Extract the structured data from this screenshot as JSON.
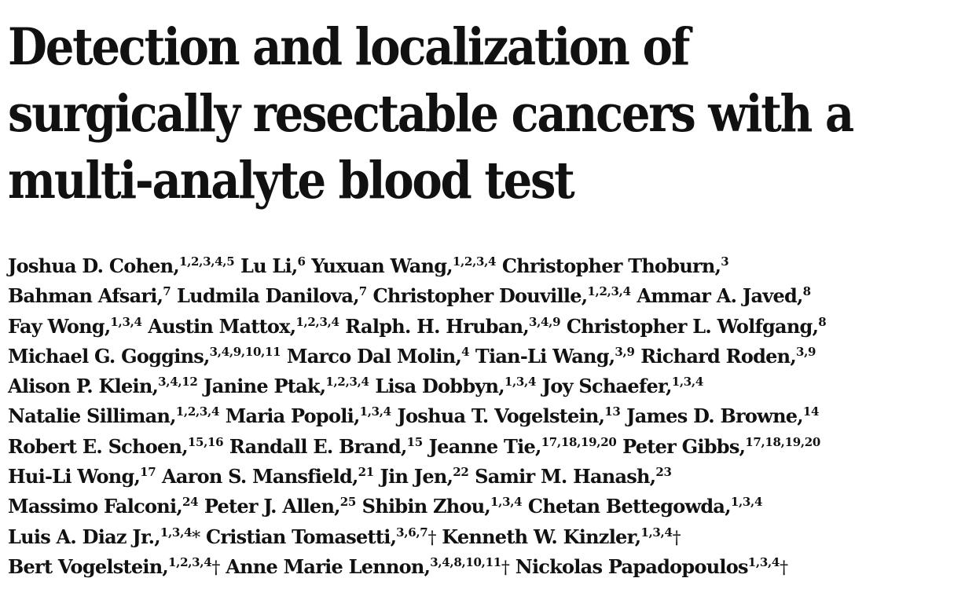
{
  "paper": {
    "title_lines": [
      "Detection and localization of",
      "surgically resectable cancers with a",
      "multi-analyte blood test"
    ],
    "author_lines": [
      [
        {
          "name": "Joshua D. Cohen,",
          "aff": "1,2,3,4,5",
          "mark": ""
        },
        {
          "name": "Lu Li,",
          "aff": "6",
          "mark": ""
        },
        {
          "name": "Yuxuan Wang,",
          "aff": "1,2,3,4",
          "mark": ""
        },
        {
          "name": "Christopher Thoburn,",
          "aff": "3",
          "mark": ""
        }
      ],
      [
        {
          "name": "Bahman Afsari,",
          "aff": "7",
          "mark": ""
        },
        {
          "name": "Ludmila Danilova,",
          "aff": "7",
          "mark": ""
        },
        {
          "name": "Christopher Douville,",
          "aff": "1,2,3,4",
          "mark": ""
        },
        {
          "name": "Ammar A. Javed,",
          "aff": "8",
          "mark": ""
        }
      ],
      [
        {
          "name": "Fay Wong,",
          "aff": "1,3,4",
          "mark": ""
        },
        {
          "name": "Austin Mattox,",
          "aff": "1,2,3,4",
          "mark": ""
        },
        {
          "name": "Ralph. H. Hruban,",
          "aff": "3,4,9",
          "mark": ""
        },
        {
          "name": "Christopher L. Wolfgang,",
          "aff": "8",
          "mark": ""
        }
      ],
      [
        {
          "name": "Michael G. Goggins,",
          "aff": "3,4,9,10,11",
          "mark": ""
        },
        {
          "name": "Marco Dal Molin,",
          "aff": "4",
          "mark": ""
        },
        {
          "name": "Tian-Li Wang,",
          "aff": "3,9",
          "mark": ""
        },
        {
          "name": "Richard Roden,",
          "aff": "3,9",
          "mark": ""
        }
      ],
      [
        {
          "name": "Alison P. Klein,",
          "aff": "3,4,12",
          "mark": ""
        },
        {
          "name": "Janine Ptak,",
          "aff": "1,2,3,4",
          "mark": ""
        },
        {
          "name": "Lisa Dobbyn,",
          "aff": "1,3,4",
          "mark": ""
        },
        {
          "name": "Joy Schaefer,",
          "aff": "1,3,4",
          "mark": ""
        }
      ],
      [
        {
          "name": "Natalie Silliman,",
          "aff": "1,2,3,4",
          "mark": ""
        },
        {
          "name": "Maria Popoli,",
          "aff": "1,3,4",
          "mark": ""
        },
        {
          "name": "Joshua T. Vogelstein,",
          "aff": "13",
          "mark": ""
        },
        {
          "name": "James D. Browne,",
          "aff": "14",
          "mark": ""
        }
      ],
      [
        {
          "name": "Robert E. Schoen,",
          "aff": "15,16",
          "mark": ""
        },
        {
          "name": "Randall E. Brand,",
          "aff": "15",
          "mark": ""
        },
        {
          "name": "Jeanne Tie,",
          "aff": "17,18,19,20",
          "mark": ""
        },
        {
          "name": "Peter Gibbs,",
          "aff": "17,18,19,20",
          "mark": ""
        }
      ],
      [
        {
          "name": "Hui-Li Wong,",
          "aff": "17",
          "mark": ""
        },
        {
          "name": "Aaron S. Mansfield,",
          "aff": "21",
          "mark": ""
        },
        {
          "name": "Jin Jen,",
          "aff": "22",
          "mark": ""
        },
        {
          "name": "Samir M. Hanash,",
          "aff": "23",
          "mark": ""
        }
      ],
      [
        {
          "name": "Massimo Falconi,",
          "aff": "24",
          "mark": ""
        },
        {
          "name": "Peter J. Allen,",
          "aff": "25",
          "mark": ""
        },
        {
          "name": "Shibin Zhou,",
          "aff": "1,3,4",
          "mark": ""
        },
        {
          "name": "Chetan Bettegowda,",
          "aff": "1,3,4",
          "mark": ""
        }
      ],
      [
        {
          "name": "Luis A. Diaz Jr.,",
          "aff": "1,3,4",
          "mark": "*"
        },
        {
          "name": "Cristian Tomasetti,",
          "aff": "3,6,7",
          "mark": "†"
        },
        {
          "name": "Kenneth W. Kinzler,",
          "aff": "1,3,4",
          "mark": "†"
        }
      ],
      [
        {
          "name": "Bert Vogelstein,",
          "aff": "1,2,3,4",
          "mark": "†"
        },
        {
          "name": "Anne Marie Lennon,",
          "aff": "3,4,8,10,11",
          "mark": "†"
        },
        {
          "name": "Nickolas Papadopoulos",
          "aff": "1,3,4",
          "mark": "†"
        }
      ]
    ]
  }
}
